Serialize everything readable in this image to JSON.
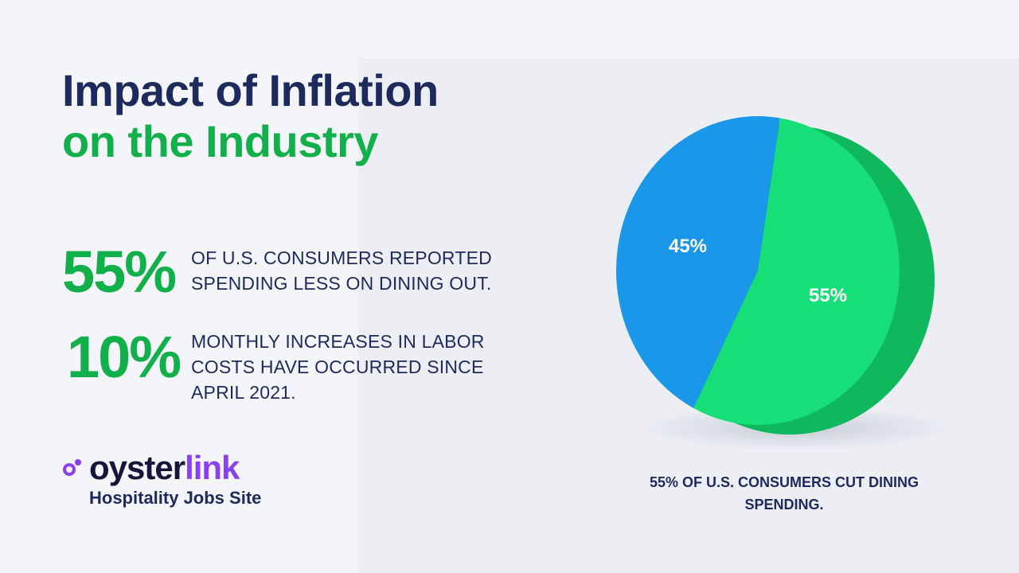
{
  "header": {
    "title_line1": "Impact of Inflation",
    "title_line2": "on the Industry"
  },
  "stats": [
    {
      "value": "55%",
      "text": "OF U.S. CONSUMERS REPORTED SPENDING LESS ON DINING OUT."
    },
    {
      "value": "10%",
      "text": "MONTHLY INCREASES IN LABOR COSTS HAVE OCCURRED SINCE APRIL 2021."
    }
  ],
  "logo": {
    "word_part1": "oyster",
    "word_part2": "link",
    "tagline": "Hospitality Jobs Site"
  },
  "colors": {
    "navy": "#1d2a5c",
    "green": "#12b04b",
    "pie_green": "#16df77",
    "pie_blue": "#1b97ea",
    "purple": "#8a3ff0"
  },
  "chart_data": {
    "type": "pie",
    "title": "",
    "slices": [
      {
        "label": "55%",
        "value": 55,
        "color": "#16df77"
      },
      {
        "label": "45%",
        "value": 45,
        "color": "#1b97ea"
      }
    ],
    "caption": "55% OF U.S. CONSUMERS CUT DINING SPENDING."
  }
}
